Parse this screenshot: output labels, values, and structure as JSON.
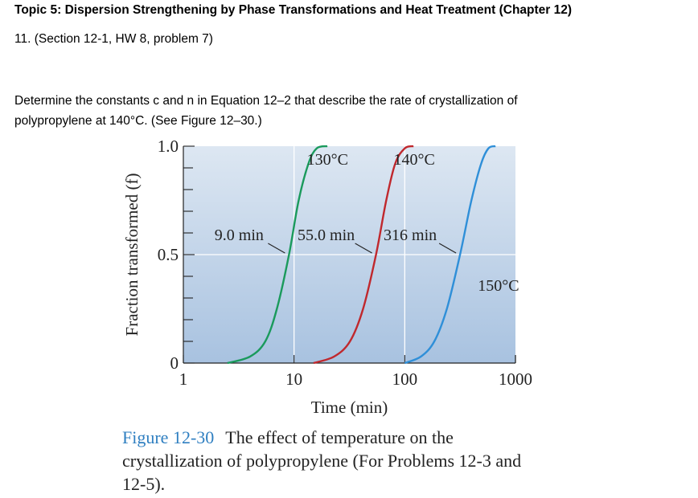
{
  "document": {
    "heading": "Topic 5: Dispersion Strengthening by Phase Transformations and Heat Treatment (Chapter 12)",
    "problem_ref": "11.  (Section 12-1, HW 8, problem 7)",
    "question": "Determine the constants c and n in Equation 12–2 that describe the rate of crystallization of polypropylene at 140°C. (See Figure 12–30.)",
    "caption_label": "Figure 12-30",
    "caption_text": "The effect of temperature on the crystallization of polypropylene (For Problems 12-3 and 12-5)."
  },
  "colors": {
    "plot_bg_top": "#dde7f2",
    "plot_bg_bottom": "#a8c2e0",
    "caption_label": "#2f7fc1"
  },
  "chart_data": {
    "type": "line",
    "xlabel": "Time (min)",
    "ylabel": "Fraction transformed (f)",
    "xscale": "log",
    "xlim": [
      1,
      1000
    ],
    "ylim": [
      0,
      1.0
    ],
    "x_ticks": [
      "1",
      "10",
      "100",
      "1000"
    ],
    "y_ticks": [
      "0",
      "0.5",
      "1.0"
    ],
    "grid": true,
    "series": [
      {
        "name": "130°C",
        "color": "#1a9a5c",
        "points": [
          [
            2.5,
            0.0
          ],
          [
            4.0,
            0.03
          ],
          [
            5.5,
            0.1
          ],
          [
            7.0,
            0.25
          ],
          [
            9.0,
            0.5
          ],
          [
            11.0,
            0.75
          ],
          [
            13.5,
            0.92
          ],
          [
            16.0,
            0.99
          ],
          [
            20.0,
            1.0
          ]
        ]
      },
      {
        "name": "140°C",
        "color": "#c0282d",
        "points": [
          [
            15,
            0.0
          ],
          [
            23,
            0.03
          ],
          [
            32,
            0.1
          ],
          [
            42,
            0.25
          ],
          [
            55,
            0.5
          ],
          [
            68,
            0.75
          ],
          [
            82,
            0.92
          ],
          [
            100,
            0.99
          ],
          [
            120,
            1.0
          ]
        ]
      },
      {
        "name": "150°C",
        "color": "#2f8fd8",
        "points": [
          [
            100,
            0.0
          ],
          [
            140,
            0.03
          ],
          [
            185,
            0.1
          ],
          [
            240,
            0.25
          ],
          [
            316,
            0.5
          ],
          [
            400,
            0.75
          ],
          [
            490,
            0.92
          ],
          [
            570,
            0.99
          ],
          [
            660,
            1.0
          ]
        ]
      }
    ],
    "annotations": [
      {
        "text": "9.0 min",
        "x": 9.0,
        "y": 0.5
      },
      {
        "text": "55.0 min",
        "x": 55.0,
        "y": 0.5
      },
      {
        "text": "316 min",
        "x": 316,
        "y": 0.5
      }
    ]
  }
}
